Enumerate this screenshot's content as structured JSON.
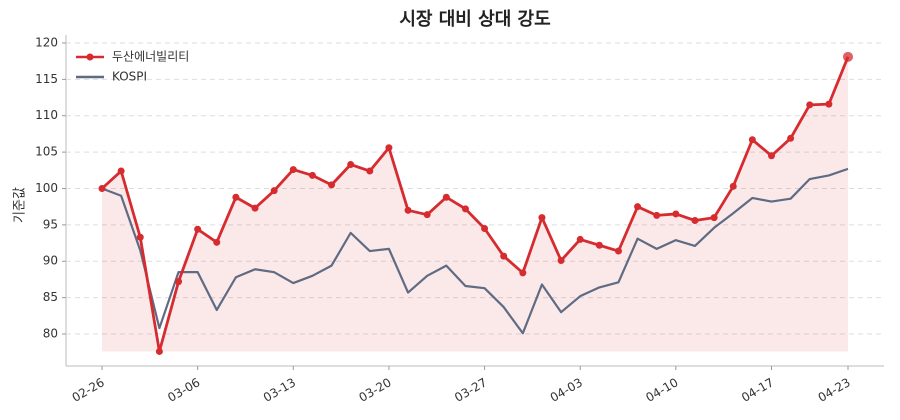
{
  "chart_data": {
    "type": "line",
    "title": "시장 대비 상대 강도",
    "y_label": "기준값",
    "categories": [
      "02-26",
      null,
      null,
      null,
      null,
      "03-06",
      null,
      null,
      null,
      null,
      "03-13",
      null,
      null,
      null,
      null,
      "03-20",
      null,
      null,
      null,
      null,
      "03-27",
      null,
      null,
      null,
      null,
      "04-03",
      null,
      null,
      null,
      null,
      "04-10",
      null,
      null,
      null,
      null,
      "04-17",
      null,
      null,
      null,
      "04-23"
    ],
    "series": [
      {
        "name": "두산에너빌리티",
        "color": "#d62b2f",
        "values": [
          100,
          102.4,
          93.3,
          77.6,
          87.2,
          94.4,
          92.6,
          98.8,
          97.3,
          99.7,
          102.6,
          101.8,
          100.5,
          103.3,
          102.4,
          105.6,
          97.0,
          96.4,
          98.8,
          97.2,
          94.5,
          90.7,
          88.4,
          96.0,
          90.1,
          93.0,
          92.2,
          91.4,
          97.5,
          96.3,
          96.5,
          95.6,
          96.0,
          100.3,
          106.7,
          104.5,
          106.9,
          111.5,
          111.6,
          118.1
        ]
      },
      {
        "name": "KOSPI",
        "color": "#5f6b82",
        "values": [
          100,
          99.0,
          91.5,
          80.8,
          88.5,
          88.5,
          83.3,
          87.8,
          88.9,
          88.5,
          87.0,
          88.0,
          89.4,
          93.9,
          91.4,
          91.7,
          85.7,
          88.0,
          89.4,
          86.6,
          86.3,
          83.7,
          80.1,
          86.8,
          83.0,
          85.2,
          86.4,
          87.1,
          93.1,
          91.7,
          92.9,
          92.1,
          94.6,
          96.6,
          98.7,
          98.2,
          98.6,
          101.3,
          101.8,
          102.7
        ]
      }
    ],
    "ylim": [
      75.6,
      121.1
    ],
    "yticks": [
      80,
      85,
      90,
      95,
      100,
      105,
      110,
      115,
      120
    ],
    "grid": true,
    "legend": "upper-left"
  }
}
